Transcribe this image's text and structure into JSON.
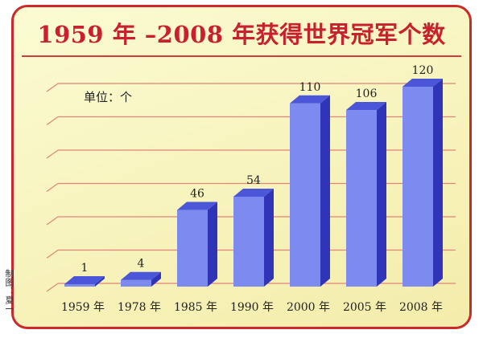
{
  "title": "1959 年 –2008 年获得世界冠军个数",
  "credit": "制图：夏一",
  "chart_data": {
    "type": "bar",
    "title": "1959 年 –2008 年获得世界冠军个数",
    "unit_label": "单位：个",
    "categories": [
      "1959 年",
      "1978 年",
      "1985 年",
      "1990 年",
      "2000 年",
      "2005 年",
      "2008 年"
    ],
    "values": [
      1,
      4,
      46,
      54,
      110,
      106,
      120
    ],
    "ylim": [
      0,
      120
    ],
    "grid": true,
    "colors": {
      "bar_front": "#7d8af0",
      "bar_top": "#4b56d8",
      "bar_side": "#3035b8",
      "grid": "#e0857a"
    }
  }
}
